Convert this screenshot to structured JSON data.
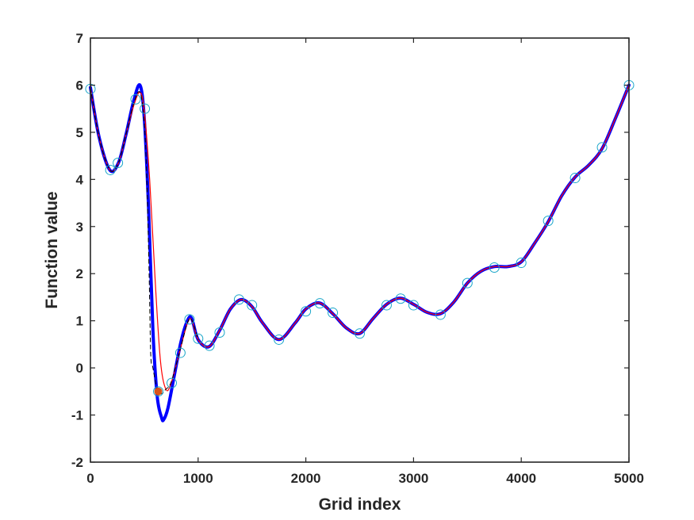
{
  "chart_data": {
    "type": "line",
    "title": "",
    "xlabel": "Grid index",
    "ylabel": "Function value",
    "xlim": [
      0,
      5000
    ],
    "ylim": [
      -2,
      7
    ],
    "xticks": [
      0,
      1000,
      2000,
      3000,
      4000,
      5000
    ],
    "yticks": [
      -2,
      -1,
      0,
      1,
      2,
      3,
      4,
      5,
      6,
      7
    ],
    "xtick_labels": [
      "0",
      "1000",
      "2000",
      "3000",
      "4000",
      "5000"
    ],
    "ytick_labels": [
      "-2",
      "-1",
      "0",
      "1",
      "2",
      "3",
      "4",
      "5",
      "6",
      "7"
    ],
    "grid": false,
    "legend": "none",
    "series": [
      {
        "kind": "thick-line",
        "color": "#0000ff",
        "x": [
          0,
          80,
          180,
          260,
          330,
          400,
          460,
          500,
          540,
          580,
          620,
          660,
          680,
          720,
          780,
          840,
          900,
          940,
          1000,
          1100,
          1200,
          1300,
          1400,
          1500,
          1600,
          1750,
          1900,
          2000,
          2125,
          2250,
          2375,
          2500,
          2625,
          2750,
          2875,
          3000,
          3125,
          3250,
          3375,
          3500,
          3625,
          3750,
          3875,
          4000,
          4125,
          4250,
          4375,
          4500,
          4625,
          4750,
          4875,
          5000
        ],
        "y": [
          5.95,
          4.9,
          4.2,
          4.35,
          4.95,
          5.65,
          6.0,
          5.3,
          3.4,
          0.8,
          -0.6,
          -1.05,
          -1.1,
          -0.85,
          -0.15,
          0.55,
          1.0,
          1.05,
          0.6,
          0.45,
          0.8,
          1.25,
          1.45,
          1.3,
          0.95,
          0.6,
          0.95,
          1.25,
          1.38,
          1.15,
          0.85,
          0.73,
          1.05,
          1.35,
          1.48,
          1.35,
          1.18,
          1.15,
          1.4,
          1.8,
          2.05,
          2.15,
          2.15,
          2.25,
          2.65,
          3.1,
          3.65,
          4.05,
          4.3,
          4.65,
          5.3,
          6.0
        ]
      },
      {
        "kind": "thin-line",
        "color": "#ff0000",
        "x": [
          0,
          80,
          180,
          260,
          330,
          400,
          460,
          500,
          550,
          600,
          650,
          700,
          750,
          840,
          900,
          940,
          1000,
          1100,
          1200,
          1300,
          1400,
          1500,
          1600,
          1750,
          1900,
          2000,
          2125,
          2250,
          2375,
          2500,
          2625,
          2750,
          2875,
          3000,
          3125,
          3250,
          3375,
          3500,
          3625,
          3750,
          3875,
          4000,
          4125,
          4250,
          4375,
          4500,
          4625,
          4750,
          4875,
          5000
        ],
        "y": [
          5.95,
          4.9,
          4.2,
          4.35,
          4.95,
          5.55,
          5.85,
          5.45,
          4.0,
          1.9,
          0.15,
          -0.45,
          -0.32,
          0.45,
          0.95,
          1.02,
          0.6,
          0.45,
          0.8,
          1.25,
          1.45,
          1.3,
          0.95,
          0.6,
          0.95,
          1.25,
          1.38,
          1.15,
          0.85,
          0.73,
          1.05,
          1.35,
          1.48,
          1.35,
          1.18,
          1.15,
          1.4,
          1.8,
          2.05,
          2.15,
          2.15,
          2.25,
          2.65,
          3.1,
          3.65,
          4.05,
          4.3,
          4.65,
          5.3,
          6.0
        ]
      },
      {
        "kind": "dashed-line",
        "color": "#000000",
        "x": [
          0,
          80,
          180,
          260,
          330,
          400,
          460,
          500,
          525,
          545,
          560,
          580,
          620,
          660,
          700,
          750,
          840,
          900,
          940,
          1000
        ],
        "y": [
          5.95,
          4.9,
          4.2,
          4.35,
          4.95,
          5.6,
          5.85,
          5.2,
          3.9,
          2.0,
          0.3,
          0.0,
          -0.45,
          -0.55,
          -0.45,
          -0.3,
          0.45,
          0.95,
          1.02,
          0.6
        ]
      },
      {
        "kind": "markers",
        "color": "#1aa6c9",
        "x": [
          0,
          185,
          255,
          420,
          505,
          630,
          755,
          835,
          920,
          1000,
          1105,
          1200,
          1380,
          1500,
          1750,
          2000,
          2130,
          2250,
          2500,
          2750,
          2880,
          3000,
          3250,
          3500,
          3750,
          4000,
          4250,
          4500,
          4750,
          5000
        ],
        "y": [
          5.92,
          4.2,
          4.35,
          5.7,
          5.5,
          -0.5,
          -0.32,
          0.32,
          1.03,
          0.62,
          0.47,
          0.75,
          1.45,
          1.33,
          0.6,
          1.2,
          1.37,
          1.17,
          0.73,
          1.33,
          1.47,
          1.33,
          1.13,
          1.8,
          2.13,
          2.23,
          3.12,
          4.03,
          4.68,
          6.0
        ]
      },
      {
        "kind": "highlight-point",
        "color": "#d95319",
        "x": [
          630
        ],
        "y": [
          -0.5
        ]
      }
    ]
  }
}
